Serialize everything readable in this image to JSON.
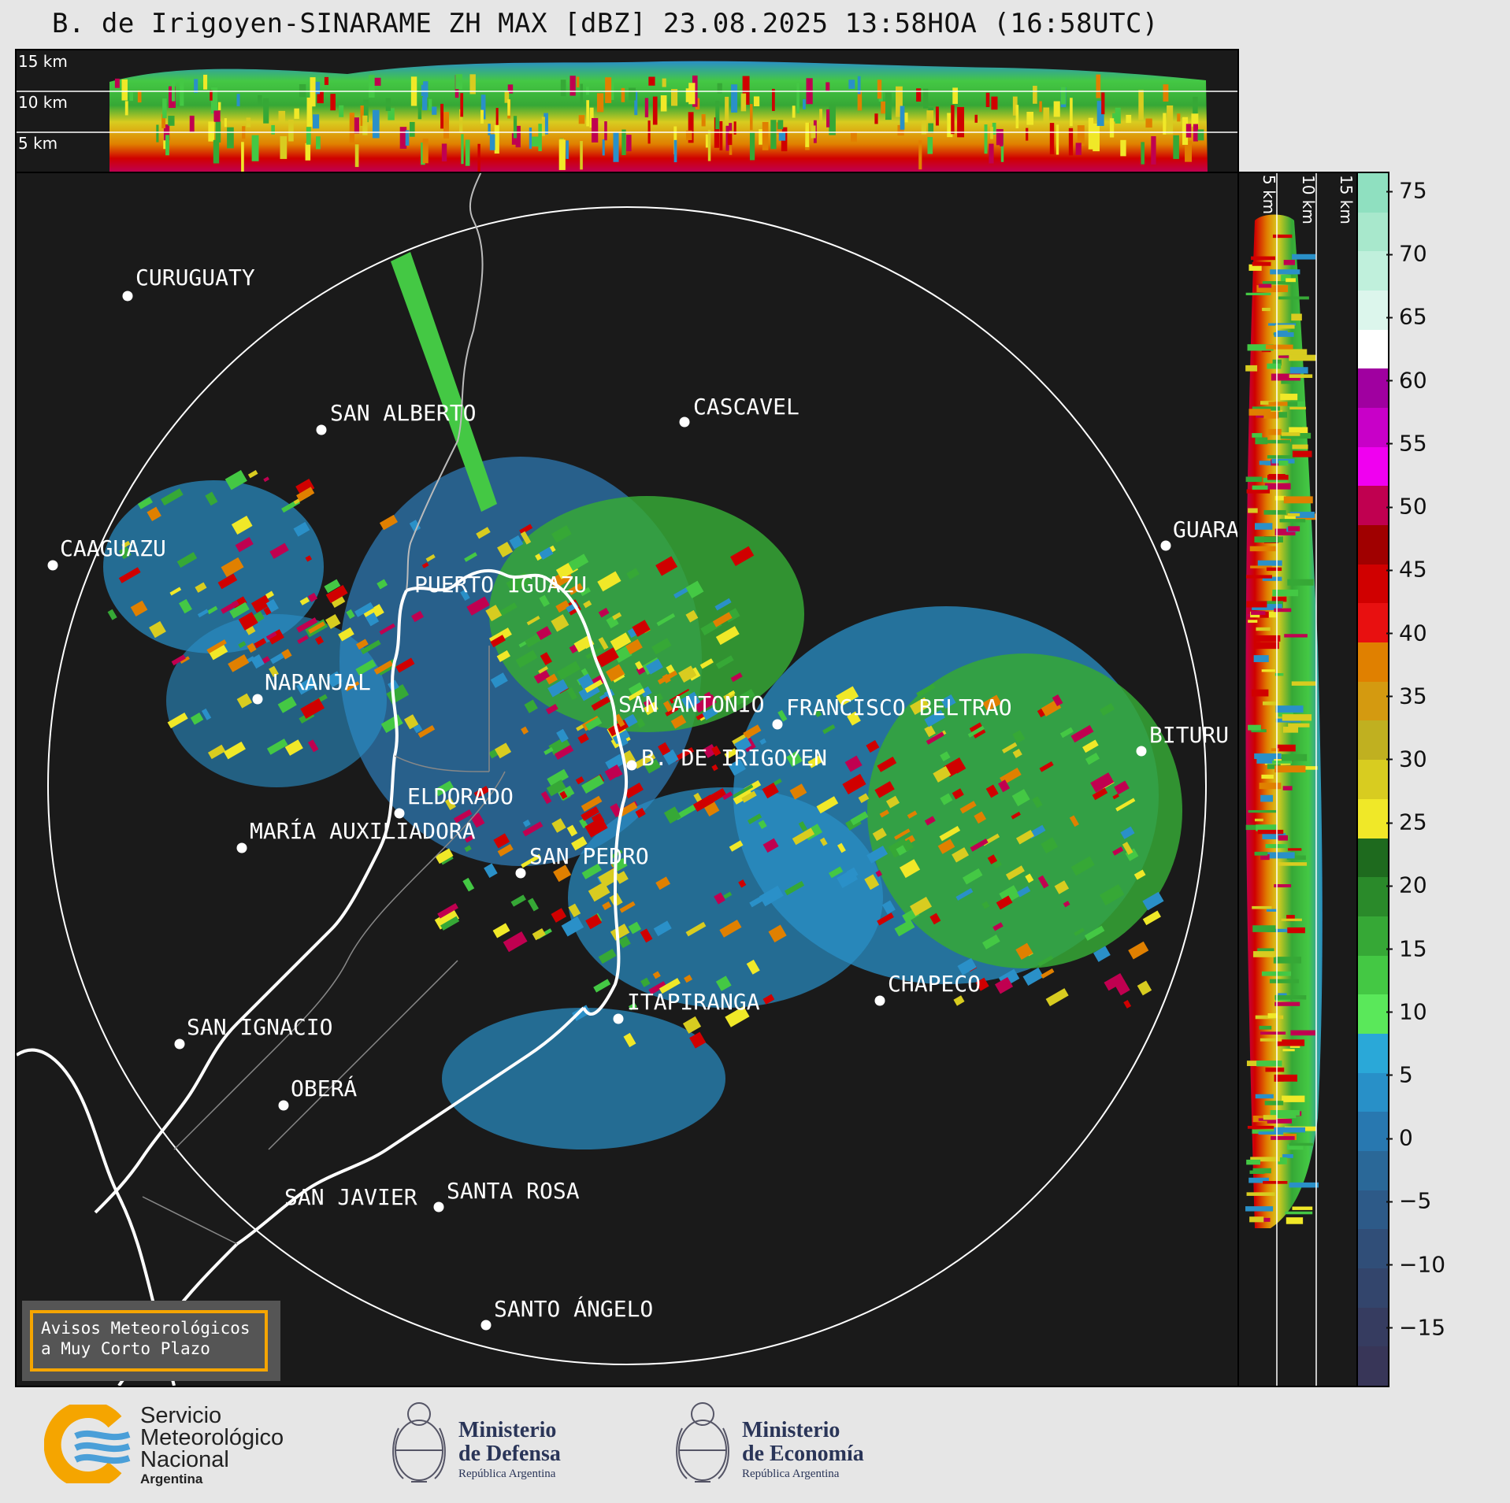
{
  "title": "B. de Irigoyen-SINARAME ZH MAX [dBZ] 23.08.2025 13:58HOA (16:58UTC)",
  "top_section": {
    "height_labels": [
      "15 km",
      "10 km",
      "5 km"
    ]
  },
  "side_section": {
    "height_labels": [
      "5 km",
      "10 km",
      "15 km"
    ]
  },
  "colorbar": {
    "unit": "dBZ",
    "ticks": [
      "75",
      "70",
      "65",
      "60",
      "55",
      "50",
      "45",
      "40",
      "35",
      "30",
      "25",
      "20",
      "15",
      "10",
      "5",
      "0",
      "−5",
      "−10",
      "−15"
    ],
    "colors": [
      "#8fe0c0",
      "#a8e8cc",
      "#c0f0dc",
      "#dcf6ec",
      "#ffffff",
      "#a000a0",
      "#c800c8",
      "#f000f0",
      "#c00050",
      "#a00000",
      "#d00000",
      "#e81010",
      "#e08000",
      "#d49a10",
      "#c0b020",
      "#d8cc20",
      "#f0e828",
      "#1e6a1e",
      "#2a8a2a",
      "#36a836",
      "#44c844",
      "#5ae85a",
      "#2aa8d8",
      "#2890c8",
      "#2878b0",
      "#2a6898",
      "#2d5a88",
      "#304e78",
      "#33456c",
      "#363c60",
      "#383658"
    ]
  },
  "cities": [
    {
      "name": "CURUGUATY",
      "label": "CURUGUATY"
    },
    {
      "name": "SAN ALBERTO",
      "label": "SAN ALBERTO"
    },
    {
      "name": "CASCAVEL",
      "label": "CASCAVEL"
    },
    {
      "name": "CAAGUAZU",
      "label": "CAAGUAZU"
    },
    {
      "name": "GUARA",
      "label": "GUARA"
    },
    {
      "name": "PUERTO IGUAZU",
      "label": "PUERTO IGUAZU"
    },
    {
      "name": "NARANJAL",
      "label": "NARANJAL"
    },
    {
      "name": "SAN ANTONIO",
      "label": "SAN ANTONIO"
    },
    {
      "name": "FRANCISCO BELTRAO",
      "label": "FRANCISCO BELTRAO"
    },
    {
      "name": "BITURU",
      "label": "BITURU"
    },
    {
      "name": "B. DE IRIGOYEN",
      "label": "B. DE IRIGOYEN"
    },
    {
      "name": "ELDORADO",
      "label": "ELDORADO"
    },
    {
      "name": "MARÍA AUXILIADORA",
      "label": "MARÍA AUXILIADORA"
    },
    {
      "name": "SAN PEDRO",
      "label": "SAN PEDRO"
    },
    {
      "name": "CHAPECO",
      "label": "CHAPECO"
    },
    {
      "name": "ITAPIRANGA",
      "label": "ITAPIRANGA"
    },
    {
      "name": "SAN IGNACIO",
      "label": "SAN IGNACIO"
    },
    {
      "name": "OBERÁ",
      "label": "OBERÁ"
    },
    {
      "name": "SAN JAVIER",
      "label": "SAN JAVIER"
    },
    {
      "name": "SANTA ROSA",
      "label": "SANTA ROSA"
    },
    {
      "name": "SANTO ÁNGELO",
      "label": "SANTO ÁNGELO"
    }
  ],
  "badge": {
    "line1": "Avisos Meteorológicos",
    "line2": "a Muy Corto Plazo"
  },
  "footer": {
    "smn": {
      "line1": "Servicio",
      "line2": "Meteorológico",
      "line3": "Nacional",
      "line4": "Argentina"
    },
    "defensa": {
      "line1": "Ministerio",
      "line2": "de Defensa",
      "line3": "República Argentina"
    },
    "economia": {
      "line1": "Ministerio",
      "line2": "de Economía",
      "line3": "República Argentina"
    }
  }
}
